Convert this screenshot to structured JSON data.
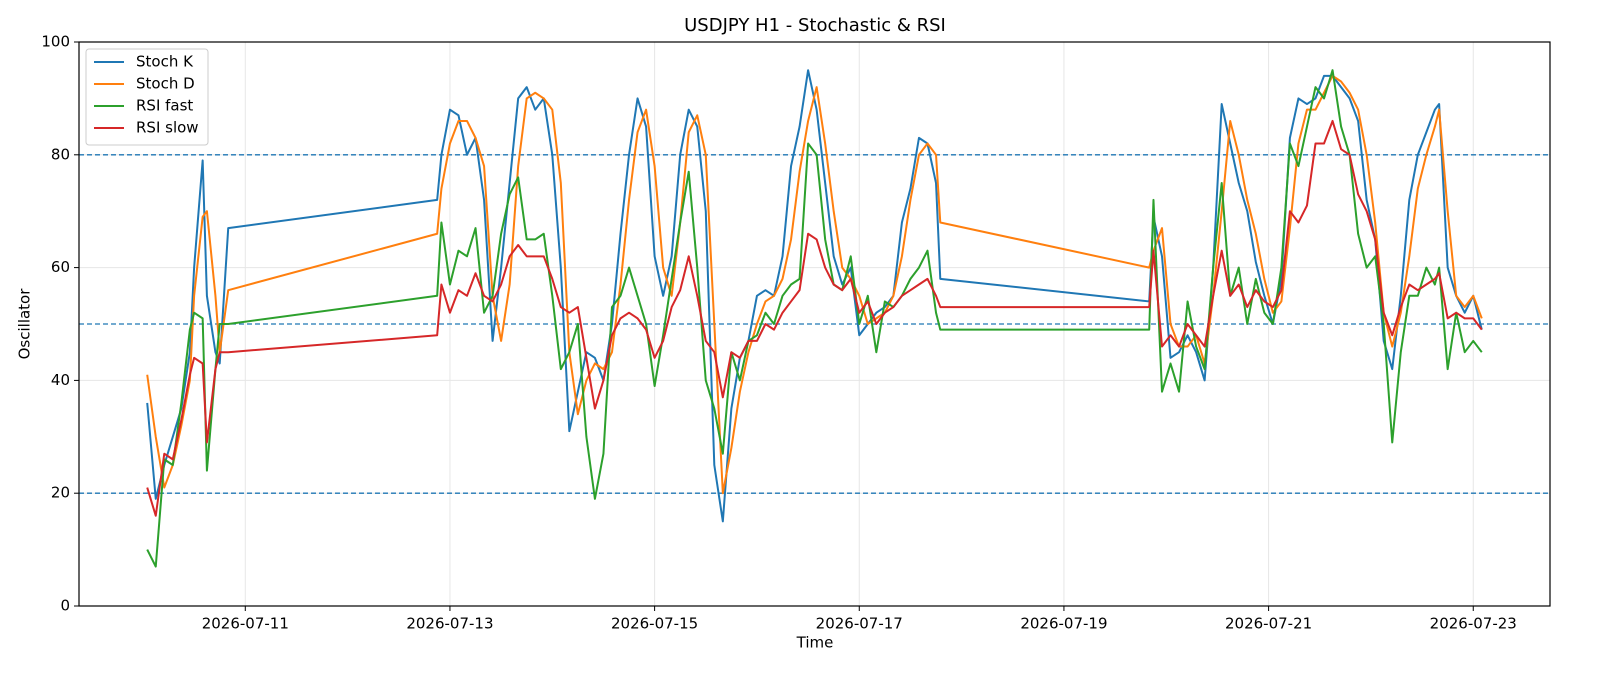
{
  "chart_data": {
    "type": "line",
    "title": "USDJPY H1 - Stochastic & RSI",
    "xlabel": "Time",
    "ylabel": "Oscillator",
    "x": [
      "2026-07-10 01:00",
      "2026-07-10 03:00",
      "2026-07-10 05:00",
      "2026-07-10 07:00",
      "2026-07-10 09:00",
      "2026-07-10 11:00",
      "2026-07-10 12:00",
      "2026-07-10 14:00",
      "2026-07-10 15:00",
      "2026-07-10 17:00",
      "2026-07-10 18:00",
      "2026-07-10 20:00",
      "2026-07-12 21:00",
      "2026-07-12 22:00",
      "2026-07-13 00:00",
      "2026-07-13 02:00",
      "2026-07-13 04:00",
      "2026-07-13 06:00",
      "2026-07-13 08:00",
      "2026-07-13 10:00",
      "2026-07-13 12:00",
      "2026-07-13 14:00",
      "2026-07-13 16:00",
      "2026-07-13 18:00",
      "2026-07-13 20:00",
      "2026-07-13 22:00",
      "2026-07-14 00:00",
      "2026-07-14 02:00",
      "2026-07-14 04:00",
      "2026-07-14 06:00",
      "2026-07-14 08:00",
      "2026-07-14 10:00",
      "2026-07-14 12:00",
      "2026-07-14 14:00",
      "2026-07-14 16:00",
      "2026-07-14 18:00",
      "2026-07-14 20:00",
      "2026-07-14 22:00",
      "2026-07-15 00:00",
      "2026-07-15 02:00",
      "2026-07-15 04:00",
      "2026-07-15 06:00",
      "2026-07-15 08:00",
      "2026-07-15 10:00",
      "2026-07-15 12:00",
      "2026-07-15 14:00",
      "2026-07-15 16:00",
      "2026-07-15 18:00",
      "2026-07-15 20:00",
      "2026-07-15 22:00",
      "2026-07-16 00:00",
      "2026-07-16 02:00",
      "2026-07-16 04:00",
      "2026-07-16 06:00",
      "2026-07-16 08:00",
      "2026-07-16 10:00",
      "2026-07-16 12:00",
      "2026-07-16 14:00",
      "2026-07-16 16:00",
      "2026-07-16 18:00",
      "2026-07-16 20:00",
      "2026-07-16 22:00",
      "2026-07-17 00:00",
      "2026-07-17 02:00",
      "2026-07-17 04:00",
      "2026-07-17 06:00",
      "2026-07-17 08:00",
      "2026-07-17 10:00",
      "2026-07-17 12:00",
      "2026-07-17 14:00",
      "2026-07-17 16:00",
      "2026-07-17 18:00",
      "2026-07-17 19:00",
      "2026-07-19 20:00",
      "2026-07-19 21:00",
      "2026-07-19 23:00",
      "2026-07-20 01:00",
      "2026-07-20 03:00",
      "2026-07-20 05:00",
      "2026-07-20 07:00",
      "2026-07-20 09:00",
      "2026-07-20 11:00",
      "2026-07-20 13:00",
      "2026-07-20 15:00",
      "2026-07-20 17:00",
      "2026-07-20 19:00",
      "2026-07-20 21:00",
      "2026-07-20 23:00",
      "2026-07-21 01:00",
      "2026-07-21 03:00",
      "2026-07-21 05:00",
      "2026-07-21 07:00",
      "2026-07-21 09:00",
      "2026-07-21 11:00",
      "2026-07-21 13:00",
      "2026-07-21 15:00",
      "2026-07-21 17:00",
      "2026-07-21 19:00",
      "2026-07-21 21:00",
      "2026-07-21 23:00",
      "2026-07-22 01:00",
      "2026-07-22 03:00",
      "2026-07-22 05:00",
      "2026-07-22 07:00",
      "2026-07-22 09:00",
      "2026-07-22 11:00",
      "2026-07-22 13:00",
      "2026-07-22 15:00",
      "2026-07-22 16:00",
      "2026-07-22 18:00",
      "2026-07-22 20:00",
      "2026-07-22 22:00",
      "2026-07-23 00:00",
      "2026-07-23 02:00"
    ],
    "series": [
      {
        "name": "Stoch K",
        "color": "#1f77b4",
        "values": [
          36,
          19,
          25,
          30,
          35,
          45,
          60,
          79,
          55,
          45,
          43,
          67,
          72,
          80,
          88,
          87,
          80,
          83,
          72,
          47,
          60,
          75,
          90,
          92,
          88,
          90,
          80,
          60,
          31,
          38,
          45,
          44,
          40,
          50,
          66,
          80,
          90,
          85,
          62,
          55,
          62,
          80,
          88,
          85,
          70,
          25,
          15,
          35,
          44,
          47,
          55,
          56,
          55,
          62,
          78,
          85,
          95,
          88,
          75,
          62,
          57,
          60,
          48,
          50,
          52,
          53,
          55,
          68,
          74,
          83,
          82,
          75,
          58,
          54,
          69,
          62,
          44,
          45,
          48,
          45,
          40,
          60,
          89,
          82,
          75,
          70,
          61,
          55,
          50,
          58,
          83,
          90,
          89,
          90,
          94,
          94,
          92,
          90,
          86,
          72,
          65,
          47,
          42,
          55,
          72,
          80,
          84,
          88,
          89,
          60,
          55,
          52,
          55,
          49
        ]
      },
      {
        "name": "Stoch D",
        "color": "#ff7f0e",
        "values": [
          41,
          30,
          21,
          25,
          32,
          40,
          55,
          69,
          70,
          55,
          45,
          56,
          66,
          74,
          82,
          86,
          86,
          83,
          78,
          55,
          47,
          57,
          78,
          90,
          91,
          90,
          88,
          75,
          45,
          34,
          40,
          43,
          42,
          45,
          57,
          72,
          84,
          88,
          78,
          60,
          55,
          68,
          84,
          87,
          80,
          50,
          20,
          28,
          38,
          45,
          50,
          54,
          55,
          58,
          65,
          77,
          86,
          92,
          82,
          70,
          60,
          58,
          55,
          50,
          51,
          52,
          55,
          62,
          72,
          80,
          82,
          80,
          68,
          60,
          63,
          67,
          50,
          46,
          46,
          48,
          43,
          55,
          70,
          86,
          80,
          72,
          66,
          58,
          52,
          54,
          67,
          82,
          88,
          88,
          91,
          94,
          93,
          91,
          88,
          80,
          68,
          52,
          46,
          52,
          62,
          74,
          80,
          85,
          88,
          70,
          55,
          53,
          55,
          51
        ]
      },
      {
        "name": "RSI fast",
        "color": "#2ca02c",
        "values": [
          10,
          7,
          26,
          25,
          36,
          49,
          52,
          51,
          24,
          42,
          50,
          50,
          55,
          68,
          57,
          63,
          62,
          67,
          52,
          55,
          66,
          73,
          76,
          65,
          65,
          66,
          55,
          42,
          45,
          50,
          30,
          19,
          27,
          53,
          55,
          60,
          55,
          50,
          39,
          48,
          58,
          68,
          77,
          60,
          40,
          35,
          27,
          45,
          40,
          47,
          48,
          52,
          50,
          55,
          57,
          58,
          82,
          80,
          65,
          57,
          56,
          62,
          50,
          55,
          45,
          54,
          53,
          55,
          58,
          60,
          63,
          52,
          49,
          49,
          72,
          38,
          43,
          38,
          54,
          46,
          42,
          60,
          75,
          55,
          60,
          50,
          58,
          52,
          50,
          60,
          82,
          78,
          85,
          92,
          90,
          95,
          85,
          80,
          66,
          60,
          62,
          50,
          29,
          45,
          55,
          55,
          60,
          57,
          60,
          42,
          52,
          45,
          47,
          45
        ]
      },
      {
        "name": "RSI slow",
        "color": "#d62728",
        "values": [
          21,
          16,
          27,
          26,
          33,
          41,
          44,
          43,
          29,
          42,
          45,
          45,
          48,
          57,
          52,
          56,
          55,
          59,
          55,
          54,
          57,
          62,
          64,
          62,
          62,
          62,
          58,
          53,
          52,
          53,
          44,
          35,
          40,
          48,
          51,
          52,
          51,
          49,
          44,
          47,
          53,
          56,
          62,
          55,
          47,
          45,
          37,
          45,
          44,
          47,
          47,
          50,
          49,
          52,
          54,
          56,
          66,
          65,
          60,
          57,
          56,
          58,
          52,
          54,
          50,
          52,
          53,
          55,
          56,
          57,
          58,
          55,
          53,
          53,
          63,
          46,
          48,
          46,
          50,
          48,
          46,
          55,
          63,
          55,
          57,
          53,
          56,
          54,
          53,
          56,
          70,
          68,
          71,
          82,
          82,
          86,
          81,
          80,
          73,
          70,
          65,
          52,
          48,
          53,
          57,
          56,
          57,
          58,
          59,
          51,
          52,
          51,
          51,
          49
        ]
      }
    ],
    "xlim": [
      "2026-07-09 09:00",
      "2026-07-23 18:00"
    ],
    "xticks": [
      "2026-07-11",
      "2026-07-13",
      "2026-07-15",
      "2026-07-17",
      "2026-07-19",
      "2026-07-21",
      "2026-07-23"
    ],
    "ylim": [
      0,
      100
    ],
    "yticks": [
      0,
      20,
      40,
      60,
      80,
      100
    ],
    "ref_lines": [
      20,
      50,
      80
    ],
    "ref_line_color": "#1f77b4",
    "grid": true,
    "legend": "upper left"
  }
}
